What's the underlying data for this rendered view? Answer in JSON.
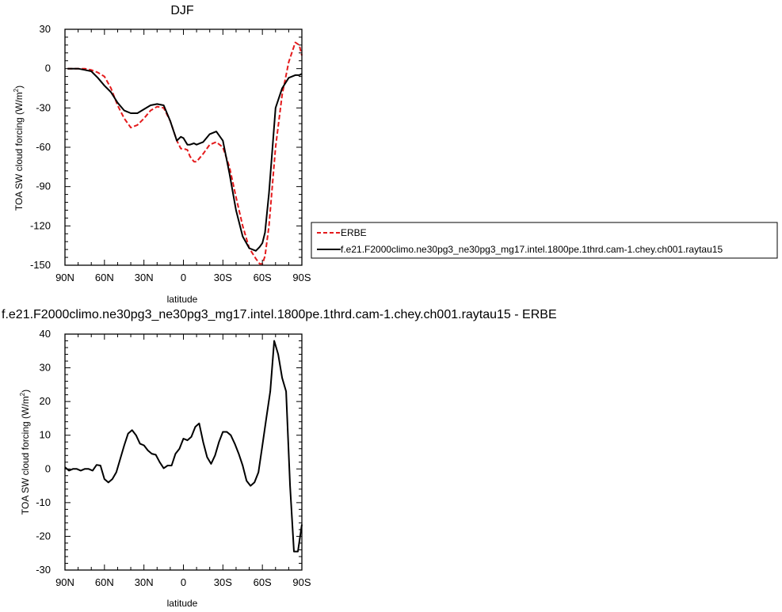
{
  "chart_data": [
    {
      "type": "line",
      "title": "DJF",
      "xlabel": "latitude",
      "ylabel": "TOA SW cloud forcing (W/m",
      "ylabel_sup": "2",
      "ylabel_end": ")",
      "xlim": [
        90,
        -90
      ],
      "ylim": [
        -150,
        30
      ],
      "xticks": [
        90,
        60,
        30,
        0,
        -30,
        -60,
        -90
      ],
      "xtick_labels": [
        "90N",
        "60N",
        "30N",
        "0",
        "30S",
        "60S",
        "90S"
      ],
      "yticks": [
        30,
        0,
        -30,
        -60,
        -90,
        -120,
        -150
      ],
      "ytick_labels": [
        "30",
        "0",
        "-30",
        "-60",
        "-90",
        "-120",
        "-150"
      ],
      "legend_position": "right",
      "series": [
        {
          "name": "ERBE",
          "color": "#e41a1c",
          "dash": "dashed",
          "x": [
            88,
            85,
            80,
            75,
            70,
            65,
            60,
            55,
            50,
            45,
            40,
            35,
            30,
            25,
            20,
            15,
            10,
            5,
            2,
            0,
            -3,
            -5,
            -8,
            -10,
            -15,
            -20,
            -25,
            -30,
            -35,
            -40,
            -45,
            -50,
            -55,
            -58,
            -60,
            -62,
            -65,
            -70,
            -75,
            -80,
            -85,
            -88,
            -90
          ],
          "y": [
            0,
            0,
            0,
            0,
            -1,
            -3,
            -6,
            -15,
            -28,
            -38,
            -45,
            -43,
            -38,
            -32,
            -29,
            -30,
            -40,
            -55,
            -61,
            -61,
            -62,
            -67,
            -71,
            -71,
            -65,
            -58,
            -56,
            -60,
            -75,
            -98,
            -120,
            -137,
            -145,
            -149,
            -149,
            -143,
            -120,
            -60,
            -20,
            5,
            20,
            18,
            10
          ]
        },
        {
          "name": "f.e21.F2000climo.ne30pg3_ne30pg3_mg17.intel.1800pe.1thrd.cam-1.chey.ch001.raytau15",
          "color": "#000000",
          "dash": "solid",
          "x": [
            88,
            85,
            80,
            75,
            70,
            65,
            60,
            55,
            50,
            45,
            40,
            35,
            30,
            25,
            20,
            15,
            10,
            5,
            2,
            0,
            -3,
            -5,
            -8,
            -10,
            -15,
            -20,
            -25,
            -30,
            -35,
            -40,
            -45,
            -50,
            -55,
            -58,
            -60,
            -62,
            -65,
            -70,
            -75,
            -80,
            -85,
            -88,
            -90
          ],
          "y": [
            0,
            0,
            0,
            -1,
            -2,
            -7,
            -13,
            -18,
            -26,
            -32,
            -34,
            -34,
            -31,
            -28,
            -27,
            -28,
            -40,
            -55,
            -52,
            -53,
            -58,
            -58,
            -57,
            -58,
            -56,
            -50,
            -48,
            -55,
            -80,
            -108,
            -128,
            -137,
            -139,
            -136,
            -133,
            -125,
            -95,
            -30,
            -15,
            -7,
            -5,
            -5,
            -4
          ]
        }
      ]
    },
    {
      "type": "line",
      "title": "f.e21.F2000climo.ne30pg3_ne30pg3_mg17.intel.1800pe.1thrd.cam-1.chey.ch001.raytau15 - ERBE",
      "xlabel": "latitude",
      "ylabel": "TOA SW cloud forcing (W/m",
      "ylabel_sup": "2",
      "ylabel_end": ")",
      "xlim": [
        90,
        -90
      ],
      "ylim": [
        -30,
        40
      ],
      "xticks": [
        90,
        60,
        30,
        0,
        -30,
        -60,
        -90
      ],
      "xtick_labels": [
        "90N",
        "60N",
        "30N",
        "0",
        "30S",
        "60S",
        "90S"
      ],
      "yticks": [
        40,
        30,
        20,
        10,
        0,
        -10,
        -20,
        -30
      ],
      "ytick_labels": [
        "40",
        "30",
        "20",
        "10",
        "0",
        "-10",
        "-20",
        "-30"
      ],
      "series": [
        {
          "color": "#000000",
          "dash": "solid",
          "x": [
            90,
            87,
            84,
            81,
            78,
            75,
            72,
            69,
            66,
            63,
            60,
            57,
            54,
            51,
            48,
            45,
            42,
            39,
            36,
            33,
            30,
            27,
            24,
            21,
            18,
            15,
            12,
            9,
            6,
            3,
            0,
            -3,
            -6,
            -9,
            -12,
            -15,
            -18,
            -21,
            -24,
            -27,
            -30,
            -33,
            -36,
            -39,
            -42,
            -45,
            -48,
            -51,
            -54,
            -57,
            -60,
            -63,
            -66,
            -69,
            -72,
            -75,
            -78,
            -81,
            -84,
            -87,
            -90
          ],
          "y": [
            0.5,
            -0.5,
            0,
            0,
            -0.5,
            0,
            0,
            -0.5,
            1.2,
            1,
            -3,
            -4,
            -3,
            -1,
            3,
            7,
            10.5,
            11.5,
            10,
            7.5,
            7,
            5.5,
            4.5,
            4.2,
            2,
            0.2,
            1,
            1,
            4.5,
            6,
            9,
            8.5,
            9.5,
            12.5,
            13.5,
            8,
            3.5,
            1.5,
            4,
            8,
            11,
            11,
            10,
            7.5,
            4.5,
            1,
            -3.5,
            -5,
            -4,
            -1,
            7,
            15,
            23,
            38,
            34,
            27,
            23,
            -5,
            -24.5,
            -24.5,
            -16.5
          ]
        }
      ]
    }
  ]
}
